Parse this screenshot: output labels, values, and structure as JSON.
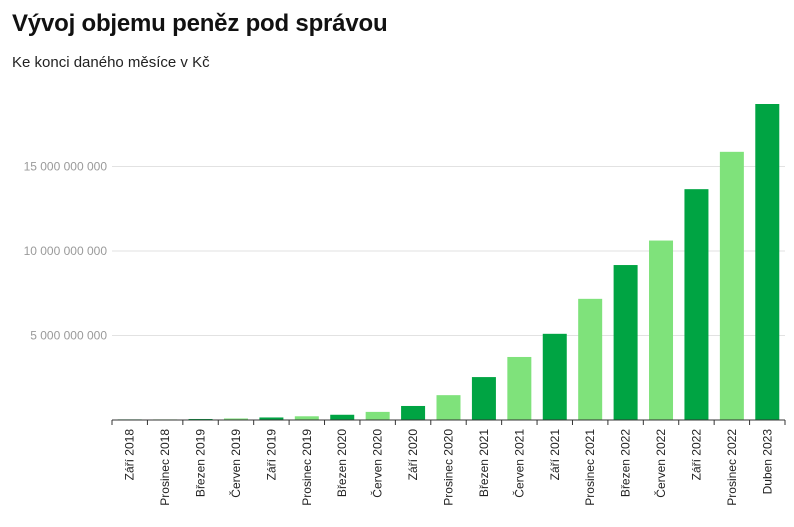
{
  "chart_data": {
    "type": "bar",
    "title": "Vývoj objemu peněz pod správou",
    "subtitle": "Ke konci daného měsíce v Kč",
    "xlabel": "",
    "ylabel": "",
    "categories": [
      "Září 2018",
      "Prosinec 2018",
      "Březen 2019",
      "Červen 2019",
      "Září 2019",
      "Prosinec 2019",
      "Březen 2020",
      "Červen 2020",
      "Září 2020",
      "Prosinec 2020",
      "Březen 2021",
      "Červen 2021",
      "Září 2021",
      "Prosinec 2021",
      "Březen 2022",
      "Červen 2022",
      "Září 2022",
      "Prosinec 2022",
      "Duben 2023"
    ],
    "values": [
      15000000,
      30000000,
      60000000,
      90000000,
      150000000,
      220000000,
      310000000,
      480000000,
      830000000,
      1470000000,
      2540000000,
      3730000000,
      5100000000,
      7170000000,
      9170000000,
      10620000000,
      13660000000,
      15870000000,
      18700000000
    ],
    "ylim": [
      0,
      18700000000
    ],
    "yticks": [
      5000000000,
      10000000000,
      15000000000
    ],
    "ytick_labels": [
      "5 000 000 000",
      "10 000 000 000",
      "15 000 000 000"
    ],
    "grid": true,
    "legend": "none",
    "colors": {
      "dark": "#00a443",
      "light": "#7fe27b"
    }
  }
}
